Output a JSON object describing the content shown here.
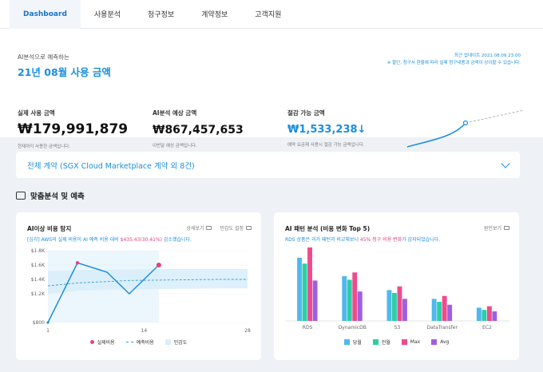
{
  "nav": {
    "tabs": [
      {
        "label": "Dashboard",
        "active": true
      },
      {
        "label": "사용분석"
      },
      {
        "label": "청구정보"
      },
      {
        "label": "계약정보"
      },
      {
        "label": "고객지원"
      }
    ]
  },
  "summary": {
    "subtitle": "AI분석으로 예측하는",
    "title": "21년 08월 사용 금액",
    "update": "최근 업데이트 2021.08.09 23:00",
    "update_note": "※ 할인, 청구서 환율에 따라 실제 청구내용과 금액이 상이할 수 있습니다.",
    "metrics": [
      {
        "label": "실제 사용 금액",
        "value": "₩179,991,879",
        "note": "현재까지 사용한 금액입니다."
      },
      {
        "label": "AI분석 예상 금액",
        "value": "₩867,457,653",
        "note": "이번달 예상 금액입니다."
      },
      {
        "label": "절감 가능 금액",
        "value": "₩1,533,238↓",
        "note": "예약 요금제 사용시 절감 가능 금액입니다."
      }
    ]
  },
  "contract": {
    "label": "전체 계약 (SGX Cloud Marketplace 계약 외 8건)"
  },
  "section": {
    "title": "맞춤분석 및 예측"
  },
  "anomaly": {
    "title": "AI이상 비용 탐지",
    "actions": [
      "상세보기",
      "민감도 설정"
    ],
    "desc_prefix": "[심각] AWS의 실제 비용이 AI 예측 비용 대비 ",
    "desc_amount": "$435.43(30.41%)",
    "desc_suffix": " 감소했습니다.",
    "legend": [
      "실제비용",
      "예측비용",
      "민감도"
    ],
    "colors": {
      "actual": "#1a8ee0",
      "predicted": "#3aa0d0",
      "band": "#d9eefb",
      "point": "#e8407a"
    }
  },
  "pattern": {
    "title": "AI 패턴 분석 (비용 변화 Top 5)",
    "action": "원인보기",
    "desc_prefix": "RDS 상품은 과거 패턴과 비교해보니 ",
    "desc_highlight": "45% 청구 비용 변화",
    "desc_suffix": "가 감지되었습니다.",
    "legend": [
      "당월",
      "전월",
      "Max",
      "Avg"
    ],
    "colors": [
      "#4fb8ee",
      "#2ccfa5",
      "#ef4b8f",
      "#a05fe0"
    ]
  },
  "chart_data": [
    {
      "type": "line",
      "title": "AI이상 비용 탐지",
      "x_ticks": [
        1,
        14,
        28
      ],
      "y_ticks": [
        "$800",
        "$1.2K",
        "$1.4K",
        "$1.6K",
        "$1.8K"
      ],
      "series": [
        {
          "name": "실제비용",
          "x": [
            1,
            5,
            9,
            12,
            16
          ],
          "values": [
            800,
            1630,
            1500,
            1200,
            1600
          ]
        },
        {
          "name": "예측비용",
          "x": [
            1,
            5,
            9,
            12,
            16,
            20,
            24,
            28
          ],
          "values": [
            1310,
            1350,
            1370,
            1385,
            1390,
            1395,
            1400,
            1400
          ]
        }
      ],
      "band_low": [
        1200,
        1240,
        1255,
        1260,
        1265,
        1270,
        1275,
        1275
      ],
      "band_high": [
        1520,
        1530,
        1535,
        1540,
        1545,
        1545,
        1545,
        1545
      ],
      "ylim": [
        800,
        1800
      ]
    },
    {
      "type": "bar",
      "title": "AI 패턴 분석 (비용 변화 Top 5)",
      "categories": [
        "RDS",
        "DynamicDB",
        "S3",
        "DataTransfer",
        "EC2"
      ],
      "series": [
        {
          "name": "당월",
          "values": [
            86,
            61,
            42,
            30,
            18
          ]
        },
        {
          "name": "전월",
          "values": [
            78,
            56,
            38,
            26,
            15
          ]
        },
        {
          "name": "Max",
          "values": [
            100,
            66,
            47,
            34,
            20
          ]
        },
        {
          "name": "Avg",
          "values": [
            55,
            40,
            30,
            22,
            13
          ]
        }
      ],
      "ylim": [
        0,
        100
      ]
    }
  ]
}
